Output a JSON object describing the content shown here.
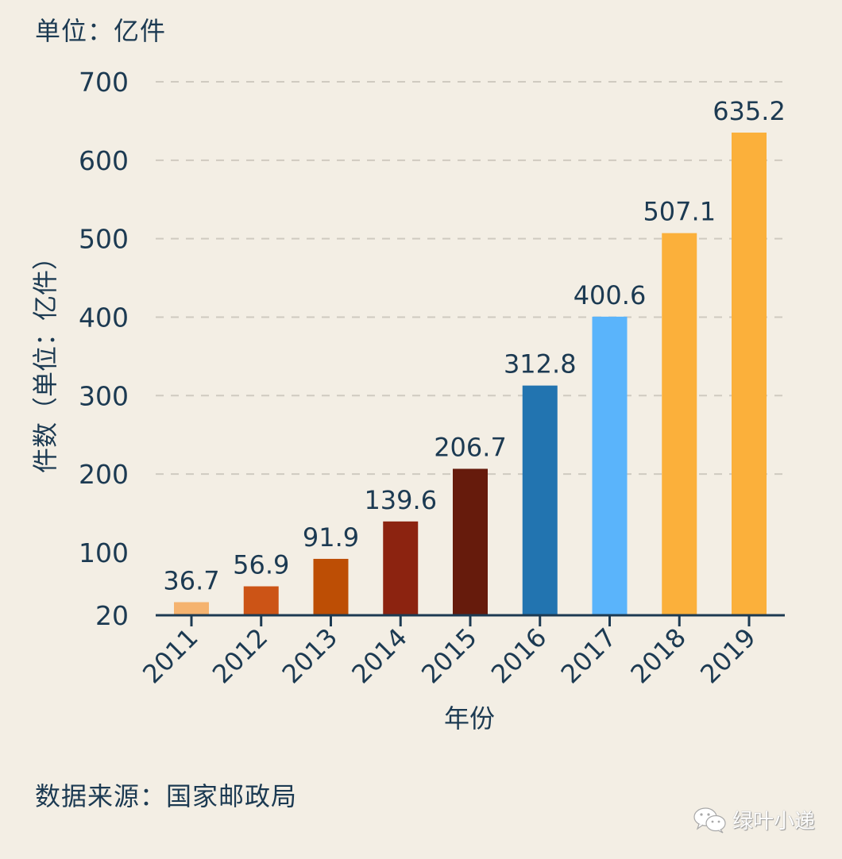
{
  "header": {
    "unit_label": "单位：亿件"
  },
  "footer": {
    "source_label": "数据来源：国家邮政局"
  },
  "watermark": {
    "icon": "wechat-icon",
    "text": "绿叶小递"
  },
  "chart_data": {
    "type": "bar",
    "title": "",
    "xlabel": "年份",
    "ylabel": "件数（单位：亿件）",
    "categories": [
      "2011",
      "2012",
      "2013",
      "2014",
      "2015",
      "2016",
      "2017",
      "2018",
      "2019"
    ],
    "values": [
      36.7,
      56.9,
      91.9,
      139.6,
      206.7,
      312.8,
      400.6,
      507.1,
      635.2
    ],
    "data_labels": [
      "36.7",
      "56.9",
      "91.9",
      "139.6",
      "206.7",
      "312.8",
      "400.6",
      "507.1",
      "635.2"
    ],
    "colors": [
      "#f5b36f",
      "#cc5416",
      "#bd4e05",
      "#8c2310",
      "#661b0c",
      "#2274b0",
      "#5ab4fb",
      "#fbb03b",
      "#fbb03b"
    ],
    "ylim": [
      20,
      700
    ],
    "yticks": [
      20,
      100,
      200,
      300,
      400,
      500,
      600,
      700
    ],
    "ytick_labels": [
      "20",
      "100",
      "200",
      "300",
      "400",
      "500",
      "600",
      "700"
    ],
    "gridlines_at": [
      200,
      300,
      400,
      500,
      600,
      700
    ],
    "grid": true,
    "grid_style": "dashed",
    "legend": "none",
    "axis_color": "#1c3a52",
    "grid_color": "#cfcac0",
    "text_color": "#1c3a52"
  }
}
